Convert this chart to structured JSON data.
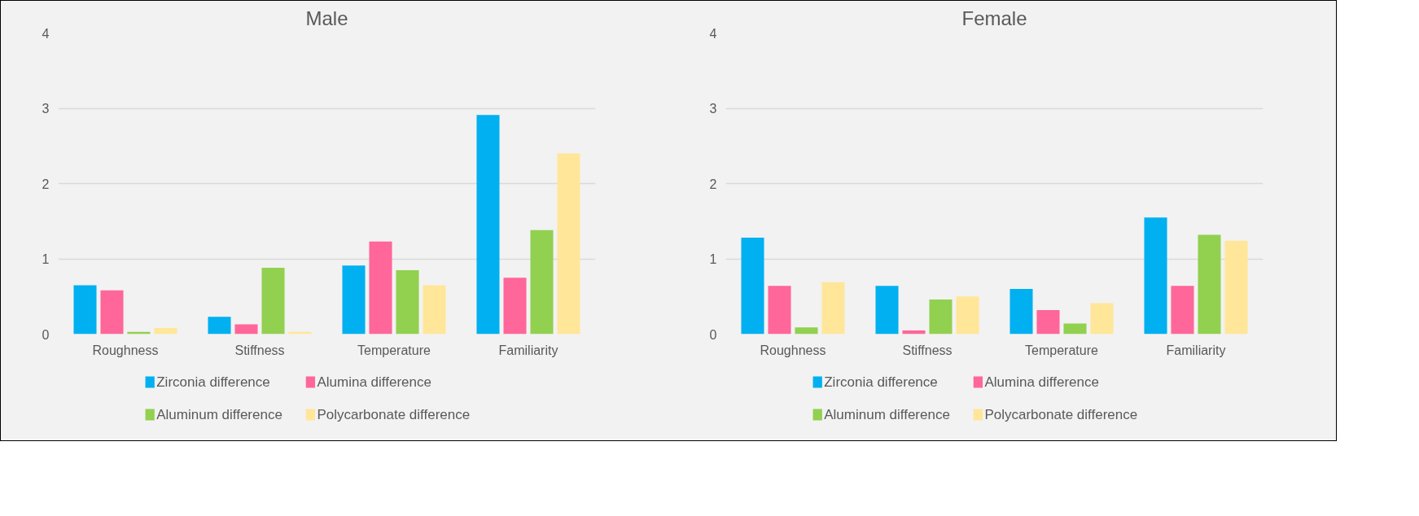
{
  "chart_data": [
    {
      "type": "bar",
      "title": "Male",
      "categories": [
        "Roughness",
        "Stiffness",
        "Temperature",
        "Familiarity"
      ],
      "series": [
        {
          "name": "Zirconia difference",
          "color": "#00b0f0",
          "values": [
            0.65,
            0.23,
            0.91,
            2.91
          ]
        },
        {
          "name": "Alumina difference",
          "color": "#ff6699",
          "values": [
            0.58,
            0.13,
            1.23,
            0.75
          ]
        },
        {
          "name": "Aluminum difference",
          "color": "#92d050",
          "values": [
            0.03,
            0.88,
            0.85,
            1.38
          ]
        },
        {
          "name": "Polycarbonate difference",
          "color": "#ffe699",
          "values": [
            0.08,
            0.03,
            0.65,
            2.4
          ]
        }
      ],
      "ylim": [
        0,
        4
      ],
      "yticks": [
        0,
        1,
        2,
        3,
        4
      ],
      "grid": "y",
      "legend": "bottom"
    },
    {
      "type": "bar",
      "title": "Female",
      "categories": [
        "Roughness",
        "Stiffness",
        "Temperature",
        "Familiarity"
      ],
      "series": [
        {
          "name": "Zirconia difference",
          "color": "#00b0f0",
          "values": [
            1.28,
            0.64,
            0.6,
            1.55
          ]
        },
        {
          "name": "Alumina difference",
          "color": "#ff6699",
          "values": [
            0.64,
            0.05,
            0.32,
            0.64
          ]
        },
        {
          "name": "Aluminum difference",
          "color": "#92d050",
          "values": [
            0.09,
            0.46,
            0.14,
            1.32
          ]
        },
        {
          "name": "Polycarbonate difference",
          "color": "#ffe699",
          "values": [
            0.69,
            0.5,
            0.41,
            1.24
          ]
        }
      ],
      "ylim": [
        0,
        4
      ],
      "yticks": [
        0,
        1,
        2,
        3,
        4
      ],
      "grid": "y",
      "legend": "bottom"
    }
  ]
}
